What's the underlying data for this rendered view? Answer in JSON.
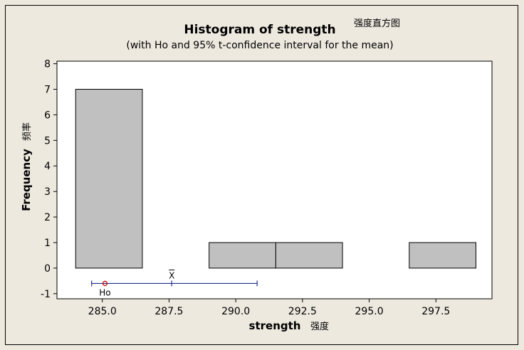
{
  "chart_data": {
    "type": "bar",
    "title": "Histogram of strength",
    "title_annotation": "强度直方图",
    "subtitle": "(with Ho and 95% t-confidence interval for the mean)",
    "xlabel": "strength",
    "xlabel_annotation": "强度",
    "ylabel": "Frequency",
    "ylabel_annotation": "频率",
    "xlim": [
      283.3,
      299.6
    ],
    "ylim": [
      -1.2,
      8.1
    ],
    "x_ticks": [
      "285.0",
      "287.5",
      "290.0",
      "292.5",
      "295.0",
      "297.5"
    ],
    "x_tick_values": [
      285.0,
      287.5,
      290.0,
      292.5,
      295.0,
      297.5
    ],
    "y_ticks": [
      "-1",
      "0",
      "1",
      "2",
      "3",
      "4",
      "5",
      "6",
      "7",
      "8"
    ],
    "y_tick_values": [
      -1,
      0,
      1,
      2,
      3,
      4,
      5,
      6,
      7,
      8
    ],
    "bins": [
      {
        "x0": 284.0,
        "x1": 286.5,
        "count": 7
      },
      {
        "x0": 286.5,
        "x1": 289.0,
        "count": 0
      },
      {
        "x0": 289.0,
        "x1": 291.5,
        "count": 1
      },
      {
        "x0": 291.5,
        "x1": 294.0,
        "count": 1
      },
      {
        "x0": 294.0,
        "x1": 296.5,
        "count": 0
      },
      {
        "x0": 296.5,
        "x1": 299.0,
        "count": 1
      }
    ],
    "confidence_interval": {
      "lower": 284.6,
      "upper": 290.8,
      "mean": 287.6,
      "level_y": -0.6
    },
    "mean_label": "X",
    "ho": {
      "value": 285.1,
      "label": "Ho"
    },
    "grid": false,
    "legend": "none",
    "colors": {
      "frame_background": "#ede9df",
      "plot_background": "#ffffff",
      "bar_fill": "#c0c0c0",
      "bar_stroke": "#000000",
      "ci_line": "#1f2f8f",
      "ho_marker": "#cc0000"
    }
  }
}
